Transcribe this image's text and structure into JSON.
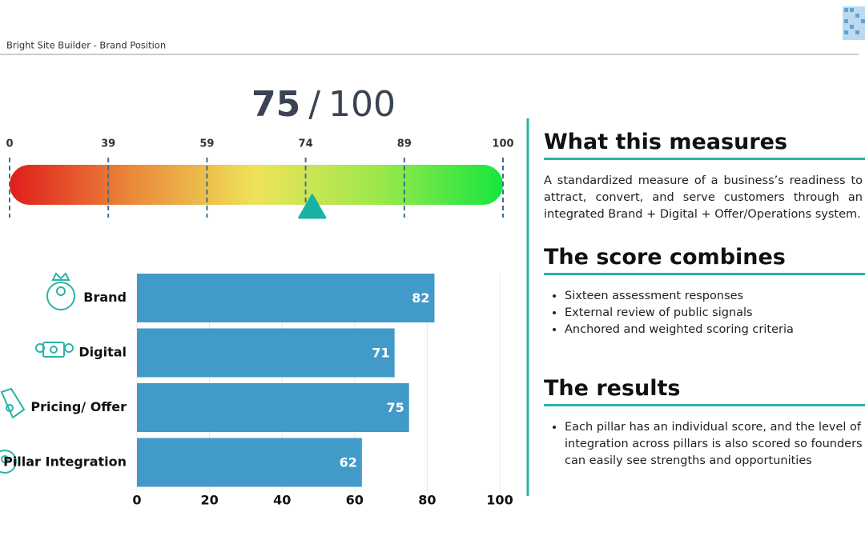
{
  "header": {
    "title": "Bright Site Builder - Brand Position"
  },
  "chart_data": [
    {
      "type": "gauge",
      "score": 75,
      "separator": "/",
      "max": 100,
      "xlim": [
        0,
        100
      ],
      "xticks": [
        0,
        39,
        59,
        74,
        89,
        100
      ]
    },
    {
      "type": "bar",
      "orientation": "horizontal",
      "categories": [
        "Brand",
        "Digital",
        "Pricing/ Offer",
        "Pillar Integration"
      ],
      "values": [
        82,
        71,
        75,
        62
      ],
      "color": "#429ac8",
      "xlim": [
        0,
        100
      ],
      "xticks": [
        0,
        20,
        40,
        60,
        80,
        100
      ],
      "grid": true
    }
  ],
  "sections": [
    {
      "heading": "What this measures",
      "text": "A standardized measure of a business’s readiness to attract, convert, and serve customers through an integrated Brand + Digital + Offer/Operations system."
    },
    {
      "heading": "The score combines",
      "bullets": [
        "Sixteen assessment responses",
        "External review of public signals",
        "Anchored and weighted scoring criteria"
      ]
    },
    {
      "heading": "The results",
      "bullets": [
        "Each pillar has an individual score, and the level of integration across pillars is also scored so founders can easily see strengths and opportunities"
      ]
    }
  ]
}
